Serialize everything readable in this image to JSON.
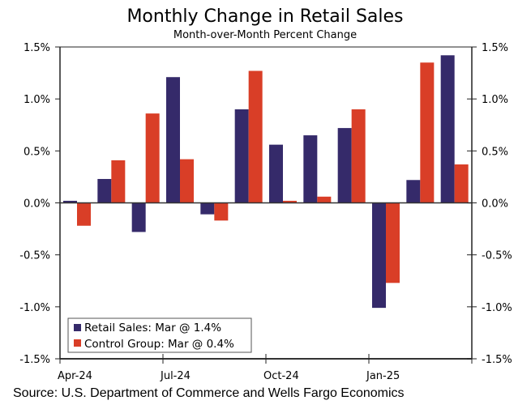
{
  "chart_data": {
    "type": "bar",
    "title": "Monthly Change in Retail Sales",
    "subtitle": "Month-over-Month Percent Change",
    "xlabel": "",
    "ylabel": "",
    "ylim": [
      -1.5,
      1.5
    ],
    "yticks": [
      1.5,
      1.0,
      0.5,
      0.0,
      -0.5,
      -1.0,
      -1.5
    ],
    "ytick_labels": [
      "1.5%",
      "1.0%",
      "0.5%",
      "0.0%",
      "-0.5%",
      "-1.0%",
      "-1.5%"
    ],
    "y_axis_sides": [
      "left",
      "right"
    ],
    "grid": false,
    "categories": [
      "Apr-24",
      "May-24",
      "Jun-24",
      "Jul-24",
      "Aug-24",
      "Sep-24",
      "Oct-24",
      "Nov-24",
      "Dec-24",
      "Jan-25",
      "Feb-25",
      "Mar-25"
    ],
    "xtick_labels": [
      {
        "index": 0,
        "label": "Apr-24"
      },
      {
        "index": 3,
        "label": "Jul-24"
      },
      {
        "index": 6,
        "label": "Oct-24"
      },
      {
        "index": 9,
        "label": "Jan-25"
      }
    ],
    "series": [
      {
        "name": "Retail Sales",
        "legend_label": "Retail Sales: Mar @ 1.4%",
        "color": "#352a6a",
        "values": [
          0.02,
          0.23,
          -0.28,
          1.21,
          -0.11,
          0.9,
          0.56,
          0.65,
          0.72,
          -1.01,
          0.22,
          1.42
        ]
      },
      {
        "name": "Control Group",
        "legend_label": "Control Group: Mar @ 0.4%",
        "color": "#d93e27",
        "values": [
          -0.22,
          0.41,
          0.86,
          0.42,
          -0.17,
          1.27,
          0.02,
          0.06,
          0.9,
          -0.77,
          1.35,
          0.37
        ]
      }
    ],
    "legend_position": "bottom-left",
    "source": "Source: U.S. Department of Commerce and Wells Fargo Economics"
  }
}
